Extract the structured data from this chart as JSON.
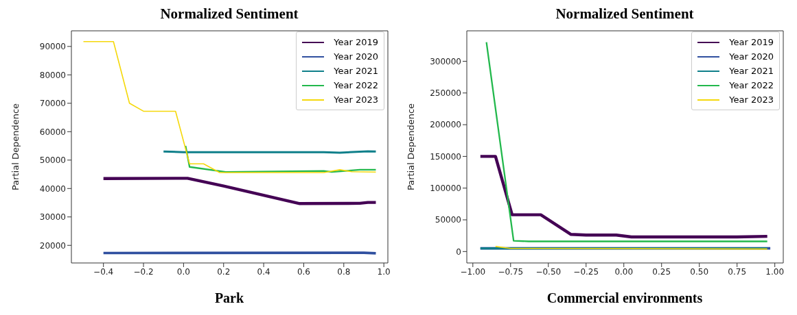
{
  "chart_data": [
    {
      "type": "line",
      "title": "Normalized Sentiment",
      "xlabel": "Park",
      "ylabel": "Partial Dependence",
      "xlim": [
        -0.56,
        1.02
      ],
      "ylim": [
        13800,
        95500
      ],
      "xticks": [
        {
          "value": -0.4,
          "label": "−0.4"
        },
        {
          "value": -0.2,
          "label": "−0.2"
        },
        {
          "value": 0,
          "label": "0.0"
        },
        {
          "value": 0.2,
          "label": "0.2"
        },
        {
          "value": 0.4,
          "label": "0.4"
        },
        {
          "value": 0.6,
          "label": "0.6"
        },
        {
          "value": 0.8,
          "label": "0.8"
        },
        {
          "value": 1,
          "label": "1.0"
        }
      ],
      "yticks": [
        20000,
        30000,
        40000,
        50000,
        60000,
        70000,
        80000,
        90000
      ],
      "legend": "top right",
      "marker": "none",
      "line_style": "solid",
      "series": [
        {
          "name": "Year 2019",
          "color": "#440154",
          "x": [
            -0.4,
            0.02,
            0.2,
            0.58,
            0.88,
            0.92,
            0.96
          ],
          "values": [
            43500,
            43600,
            40900,
            34700,
            34800,
            35100,
            35100
          ]
        },
        {
          "name": "Year 2020",
          "color": "#2f4f9f",
          "x": [
            -0.4,
            0.9,
            0.96
          ],
          "values": [
            17300,
            17400,
            17200
          ]
        },
        {
          "name": "Year 2021",
          "color": "#0e7f8a",
          "x": [
            -0.1,
            0.0,
            0.7,
            0.78,
            0.92,
            0.96
          ],
          "values": [
            53000,
            52800,
            52800,
            52600,
            53100,
            53000
          ]
        },
        {
          "name": "Year 2022",
          "color": "#22b84c",
          "x": [
            0.01,
            0.03,
            0.21,
            0.7,
            0.74,
            0.88,
            0.96
          ],
          "values": [
            55000,
            47600,
            45800,
            46200,
            45800,
            46600,
            46600
          ]
        },
        {
          "name": "Year 2023",
          "color": "#f5d80a",
          "x": [
            -0.5,
            -0.35,
            -0.27,
            -0.2,
            -0.04,
            0.03,
            0.1,
            0.18,
            0.7,
            0.78,
            0.84,
            0.96
          ],
          "values": [
            91700,
            91700,
            70000,
            67200,
            67200,
            48700,
            48700,
            45600,
            45600,
            46600,
            45900,
            45800
          ]
        }
      ]
    },
    {
      "type": "line",
      "title": "Normalized Sentiment",
      "xlabel": "Commercial environments",
      "ylabel": "Partial Dependence",
      "xlim": [
        -1.04,
        1.056
      ],
      "ylim": [
        -18000,
        348000
      ],
      "xticks": [
        {
          "value": -1,
          "label": "−1.00"
        },
        {
          "value": -0.75,
          "label": "−0.75"
        },
        {
          "value": -0.5,
          "label": "−0.50"
        },
        {
          "value": -0.25,
          "label": "−0.25"
        },
        {
          "value": 0,
          "label": "0.00"
        },
        {
          "value": 0.25,
          "label": "0.25"
        },
        {
          "value": 0.5,
          "label": "0.50"
        },
        {
          "value": 0.75,
          "label": "0.75"
        },
        {
          "value": 1,
          "label": "1.00"
        }
      ],
      "yticks": [
        0,
        50000,
        100000,
        150000,
        200000,
        250000,
        300000
      ],
      "legend": "top right",
      "marker": "none",
      "line_style": "solid",
      "series": [
        {
          "name": "Year 2019",
          "color": "#440154",
          "x": [
            -0.95,
            -0.85,
            -0.74,
            -0.55,
            -0.35,
            -0.25,
            -0.05,
            0.05,
            0.75,
            0.95
          ],
          "values": [
            150000,
            150000,
            58000,
            58000,
            27000,
            26000,
            26000,
            23000,
            23000,
            24000
          ]
        },
        {
          "name": "Year 2020",
          "color": "#2f4f9f",
          "x": [
            -0.95,
            0.97
          ],
          "values": [
            5000,
            5000
          ]
        },
        {
          "name": "Year 2021",
          "color": "#0e7f8a",
          "x": [
            -0.95,
            0.95
          ],
          "values": [
            5000,
            5000
          ]
        },
        {
          "name": "Year 2022",
          "color": "#22b84c",
          "x": [
            -0.91,
            -0.73,
            -0.63,
            0.95
          ],
          "values": [
            330000,
            17000,
            16000,
            16000
          ]
        },
        {
          "name": "Year 2023",
          "color": "#f5d80a",
          "x": [
            -0.85,
            -0.75,
            0.95
          ],
          "values": [
            8000,
            5000,
            4000
          ]
        }
      ]
    }
  ]
}
